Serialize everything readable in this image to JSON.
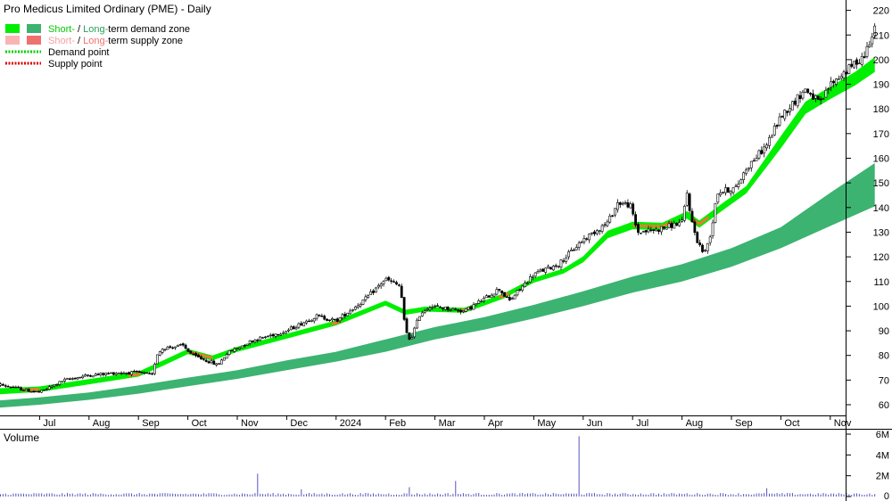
{
  "chart_data": {
    "type": "candlestick",
    "title": "Pro Medicus Limited Ordinary (PME) - Daily",
    "legend": {
      "placement": "top-left",
      "items": [
        {
          "parts": [
            {
              "text": "Short-",
              "color": "#00cc00"
            },
            {
              "text": " / ",
              "color": "#000000"
            },
            {
              "text": "Long-",
              "color": "#2e9e5b"
            },
            {
              "text": "term demand zone",
              "color": "#000000"
            }
          ],
          "swatches": [
            "#00ee00",
            "#3cb371"
          ],
          "style": "box"
        },
        {
          "parts": [
            {
              "text": "Short-",
              "color": "#f4a0a0"
            },
            {
              "text": " / ",
              "color": "#000000"
            },
            {
              "text": "Long-",
              "color": "#f07070"
            },
            {
              "text": "term supply zone",
              "color": "#000000"
            }
          ],
          "swatches": [
            "#f9b4b4",
            "#f07070"
          ],
          "style": "box"
        },
        {
          "parts": [
            {
              "text": "Demand point",
              "color": "#000000"
            }
          ],
          "swatches": [
            "#00cc00"
          ],
          "style": "dotted"
        },
        {
          "parts": [
            {
              "text": "Supply point",
              "color": "#000000"
            }
          ],
          "swatches": [
            "#dd0000"
          ],
          "style": "dotted"
        }
      ]
    },
    "x_labels": [
      "Jul",
      "Aug",
      "Sep",
      "Oct",
      "Nov",
      "Dec",
      "2024",
      "Feb",
      "Mar",
      "Apr",
      "May",
      "Jun",
      "Jul",
      "Aug",
      "Sep",
      "Oct",
      "Nov"
    ],
    "x_label_month_index": [
      1,
      2,
      3,
      4,
      5,
      6,
      7,
      8,
      9,
      10,
      11,
      12,
      13,
      14,
      15,
      16,
      17
    ],
    "price_axis": {
      "ylim": [
        52,
        222
      ],
      "ticks": [
        60,
        70,
        80,
        90,
        100,
        110,
        120,
        130,
        140,
        150,
        160,
        170,
        180,
        190,
        200,
        210,
        220
      ],
      "side": "right"
    },
    "volume_axis": {
      "label": "Volume",
      "ylim": [
        0,
        6.4
      ],
      "ticks": [
        0,
        2,
        4,
        6
      ],
      "tick_labels": [
        "0",
        "2M",
        "4M",
        "6M"
      ],
      "side": "right"
    },
    "price_path": [
      [
        0.0,
        69
      ],
      [
        0.7,
        66
      ],
      [
        1.0,
        65
      ],
      [
        1.5,
        70
      ],
      [
        2.0,
        72
      ],
      [
        2.6,
        73
      ],
      [
        3.0,
        73
      ],
      [
        3.3,
        72
      ],
      [
        3.35,
        80
      ],
      [
        3.5,
        83
      ],
      [
        3.9,
        84
      ],
      [
        4.1,
        80
      ],
      [
        4.5,
        77
      ],
      [
        4.6,
        76
      ],
      [
        4.8,
        81
      ],
      [
        5.3,
        86
      ],
      [
        6.0,
        90
      ],
      [
        6.6,
        96
      ],
      [
        7.0,
        94
      ],
      [
        7.6,
        103
      ],
      [
        8.0,
        111
      ],
      [
        8.3,
        108
      ],
      [
        8.4,
        90
      ],
      [
        8.5,
        86
      ],
      [
        8.7,
        97
      ],
      [
        8.9,
        100
      ],
      [
        9.6,
        98
      ],
      [
        10.0,
        103
      ],
      [
        10.3,
        107
      ],
      [
        10.5,
        102
      ],
      [
        11.0,
        113
      ],
      [
        11.5,
        117
      ],
      [
        12.0,
        127
      ],
      [
        12.5,
        134
      ],
      [
        12.7,
        142
      ],
      [
        12.95,
        141
      ],
      [
        13.1,
        130
      ],
      [
        13.5,
        131
      ],
      [
        14.0,
        134
      ],
      [
        14.1,
        146
      ],
      [
        14.2,
        134
      ],
      [
        14.3,
        127
      ],
      [
        14.45,
        121
      ],
      [
        14.6,
        131
      ],
      [
        14.7,
        146
      ],
      [
        15.1,
        148
      ],
      [
        15.3,
        156
      ],
      [
        15.7,
        165
      ],
      [
        16.0,
        177
      ],
      [
        16.5,
        188
      ],
      [
        16.8,
        182
      ],
      [
        17.0,
        190
      ],
      [
        17.3,
        195
      ],
      [
        17.7,
        202
      ],
      [
        17.9,
        214
      ]
    ],
    "short_demand_zone": [
      [
        0.0,
        64,
        66.5
      ],
      [
        1.0,
        65.2,
        67.4
      ],
      [
        2.0,
        68.3,
        70.4
      ],
      [
        3.0,
        71.4,
        73.4
      ],
      [
        3.5,
        75.8,
        78
      ],
      [
        4.0,
        80.5,
        82.6
      ],
      [
        4.5,
        78,
        80
      ],
      [
        5.0,
        81.5,
        83.5
      ],
      [
        6.0,
        86.8,
        88.8
      ],
      [
        7.0,
        92.2,
        94.2
      ],
      [
        8.0,
        100.2,
        102.2
      ],
      [
        8.4,
        96.5,
        98.5
      ],
      [
        8.8,
        97.8,
        99.8
      ],
      [
        9.6,
        97.3,
        99.3
      ],
      [
        10.4,
        103.2,
        105.2
      ],
      [
        11.0,
        109.5,
        111.5
      ],
      [
        11.6,
        113.2,
        115.2
      ],
      [
        12.0,
        117.8,
        120.2
      ],
      [
        12.5,
        127.6,
        130.6
      ],
      [
        13.0,
        131.2,
        134.2
      ],
      [
        13.6,
        130.8,
        133.8
      ],
      [
        14.1,
        135.5,
        138.5
      ],
      [
        14.35,
        131.8,
        134.8
      ],
      [
        14.8,
        138.5,
        141.5
      ],
      [
        15.3,
        145.7,
        148.7
      ],
      [
        16.0,
        164,
        169
      ],
      [
        16.5,
        178,
        183
      ],
      [
        17.0,
        184,
        189
      ],
      [
        17.5,
        189.5,
        195
      ],
      [
        17.9,
        195,
        201
      ]
    ],
    "long_demand_zone": [
      [
        0.0,
        58.5,
        61.5
      ],
      [
        1.0,
        60,
        63
      ],
      [
        2.0,
        62,
        65
      ],
      [
        3.0,
        64.5,
        67.8
      ],
      [
        4.0,
        67.5,
        71
      ],
      [
        5.0,
        70.5,
        74
      ],
      [
        6.0,
        74,
        78
      ],
      [
        7.0,
        77.5,
        81.5
      ],
      [
        8.0,
        81.5,
        86.5
      ],
      [
        9.0,
        86.5,
        91.5
      ],
      [
        10.0,
        90.5,
        95.5
      ],
      [
        11.0,
        95,
        100.5
      ],
      [
        12.0,
        100,
        106
      ],
      [
        13.0,
        105.5,
        112
      ],
      [
        14.0,
        110,
        117
      ],
      [
        15.0,
        116,
        123.5
      ],
      [
        16.0,
        123.5,
        132
      ],
      [
        17.0,
        132.5,
        146
      ],
      [
        17.9,
        140.5,
        158
      ]
    ],
    "supply_segments": [
      [
        0.65,
        1.0
      ],
      [
        2.8,
        3.05
      ],
      [
        4.0,
        4.5
      ],
      [
        6.9,
        7.1
      ],
      [
        9.5,
        9.75
      ],
      [
        10.3,
        10.5
      ],
      [
        13.0,
        13.8
      ],
      [
        14.2,
        14.55
      ]
    ],
    "volume_spikes": [
      [
        5.4,
        2.2
      ],
      [
        6.3,
        0.7
      ],
      [
        8.5,
        0.9
      ],
      [
        9.4,
        1.5
      ],
      [
        11.9,
        5.8
      ],
      [
        15.7,
        0.8
      ]
    ],
    "volume_baseline": 0.25,
    "colors": {
      "short_demand": "#00ee00",
      "long_demand": "#3cb371",
      "supply": "#ee7733",
      "candle": "#000000",
      "volume": "#5555bb",
      "title_volume": "#660099",
      "grid": "#000000"
    }
  }
}
